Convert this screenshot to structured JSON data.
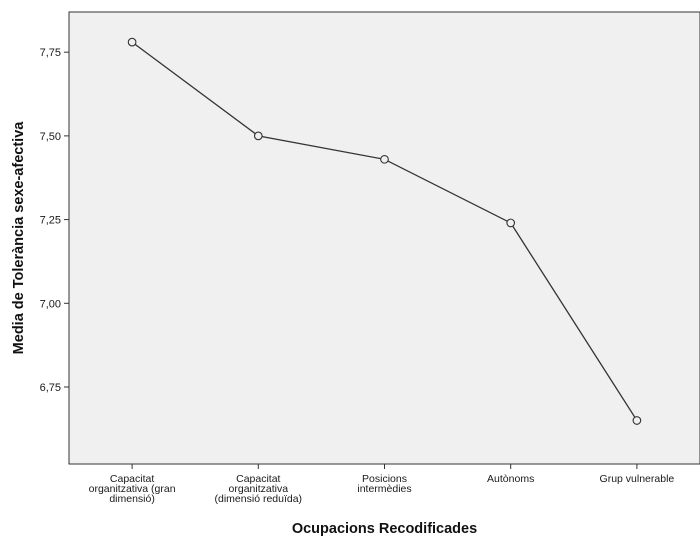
{
  "chart_data": {
    "type": "line",
    "title": "",
    "xlabel": "Ocupacions Recodificades",
    "ylabel": "Media de Tolerància sexe-afectiva",
    "categories": [
      [
        "Capacitat",
        "organitzativa (gran",
        "dimensió)"
      ],
      [
        "Capacitat",
        "organitzativa",
        "(dimensió reduïda)"
      ],
      [
        "Posicions",
        "intermèdies"
      ],
      [
        "Autònoms"
      ],
      [
        "Grup vulnerable"
      ]
    ],
    "values": [
      7.78,
      7.5,
      7.43,
      7.24,
      6.65
    ],
    "ylim": [
      6.52,
      7.87
    ],
    "yticks": [
      6.75,
      7.0,
      7.25,
      7.5,
      7.75
    ],
    "ytick_labels": [
      "6,75",
      "7,00",
      "7,25",
      "7,50",
      "7,75"
    ],
    "grid": false,
    "colors": {
      "plot_background": "#f0f0f0",
      "line": "#333333",
      "marker_edge": "#333333"
    }
  }
}
